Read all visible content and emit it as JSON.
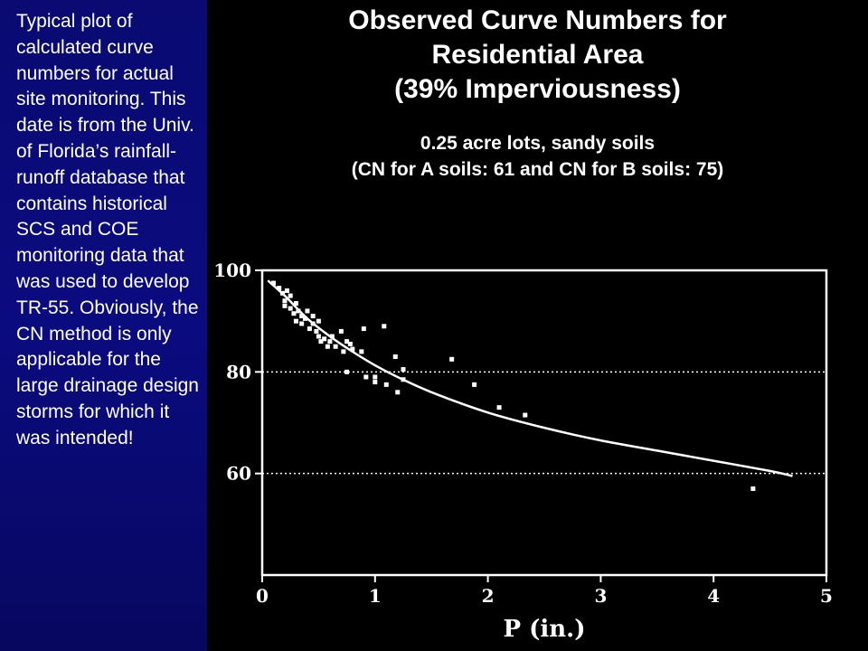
{
  "side_text": "Typical plot of calculated curve numbers for actual site monitoring. This date is from the Univ. of Florida’s rainfall-runoff database that contains historical SCS and COE monitoring data that was used to develop TR-55. Obviously, the CN method is only applicable for the large drainage design storms for which it was intended!",
  "chart_data": {
    "type": "scatter",
    "title_lines": [
      "Observed Curve Numbers for",
      "Residential Area",
      "(39% Imperviousness)"
    ],
    "subtitle_lines": [
      "0.25 acre lots, sandy soils",
      "(CN for A soils: 61 and CN for B soils: 75)"
    ],
    "xlabel": "P (in.)",
    "ylabel": "",
    "xlim": [
      0,
      5
    ],
    "ylim": [
      40,
      100
    ],
    "x_ticks": [
      0,
      1,
      2,
      3,
      4,
      5
    ],
    "y_ticks": [
      60,
      80,
      100
    ],
    "y_gridlines": [
      60,
      80,
      100
    ],
    "grid": "dotted horizontal lines at 60, 80, 100",
    "series": [
      {
        "type": "scatter",
        "points": [
          [
            0.1,
            97.5
          ],
          [
            0.15,
            96.5
          ],
          [
            0.18,
            95.5
          ],
          [
            0.2,
            94
          ],
          [
            0.22,
            96
          ],
          [
            0.25,
            95
          ],
          [
            0.2,
            93
          ],
          [
            0.25,
            92.5
          ],
          [
            0.28,
            91.5
          ],
          [
            0.3,
            93.5
          ],
          [
            0.32,
            92
          ],
          [
            0.35,
            91
          ],
          [
            0.3,
            90
          ],
          [
            0.35,
            89.5
          ],
          [
            0.38,
            90.5
          ],
          [
            0.4,
            92
          ],
          [
            0.42,
            88.5
          ],
          [
            0.45,
            89.5
          ],
          [
            0.5,
            90
          ],
          [
            0.48,
            88
          ],
          [
            0.5,
            87
          ],
          [
            0.52,
            86
          ],
          [
            0.45,
            91
          ],
          [
            0.55,
            86.5
          ],
          [
            0.58,
            85
          ],
          [
            0.6,
            86
          ],
          [
            0.62,
            87
          ],
          [
            0.7,
            88
          ],
          [
            0.75,
            86
          ],
          [
            0.65,
            85
          ],
          [
            0.72,
            84
          ],
          [
            0.78,
            85.5
          ],
          [
            0.8,
            84.5
          ],
          [
            0.88,
            84
          ],
          [
            0.9,
            88.5
          ],
          [
            0.75,
            80
          ],
          [
            0.92,
            79
          ],
          [
            1.0,
            78
          ],
          [
            1.0,
            79
          ],
          [
            1.08,
            89
          ],
          [
            1.1,
            77.5
          ],
          [
            1.18,
            83
          ],
          [
            1.25,
            80.5
          ],
          [
            1.25,
            78.5
          ],
          [
            1.2,
            76
          ],
          [
            1.68,
            82.5
          ],
          [
            1.88,
            77.5
          ],
          [
            2.1,
            73
          ],
          [
            2.33,
            71.5
          ],
          [
            4.35,
            57
          ]
        ]
      },
      {
        "type": "line",
        "name": "",
        "points": [
          [
            0.05,
            98
          ],
          [
            0.2,
            95
          ],
          [
            0.4,
            90.5
          ],
          [
            0.6,
            87
          ],
          [
            0.8,
            84
          ],
          [
            1.0,
            81.3
          ],
          [
            1.2,
            79
          ],
          [
            1.5,
            76
          ],
          [
            2.0,
            72
          ],
          [
            2.5,
            69
          ],
          [
            3.0,
            66.5
          ],
          [
            3.5,
            64.5
          ],
          [
            4.0,
            62.5
          ],
          [
            4.5,
            60.5
          ],
          [
            4.7,
            59.5
          ]
        ]
      }
    ]
  }
}
